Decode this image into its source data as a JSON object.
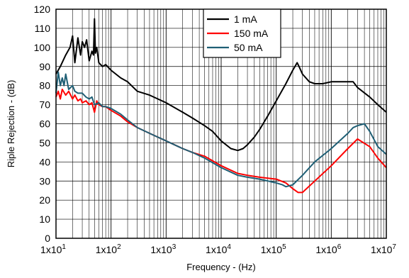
{
  "chart_data": {
    "type": "line",
    "title": "",
    "xlabel": "Frequency -  (Hz)",
    "ylabel": "Riple Rejection - (dB)",
    "x_scale": "log",
    "xlim": [
      10,
      10000000
    ],
    "ylim": [
      0,
      120
    ],
    "grid": true,
    "legend_position": "top-center",
    "y_ticks": [
      "0",
      "10",
      "20",
      "30",
      "40",
      "50",
      "60",
      "70",
      "80",
      "90",
      "100",
      "110",
      "120"
    ],
    "x_ticks": [
      {
        "base": "1x10",
        "exp": "1"
      },
      {
        "base": "1x10",
        "exp": "2"
      },
      {
        "base": "1x10",
        "exp": "3"
      },
      {
        "base": "1x10",
        "exp": "4"
      },
      {
        "base": "1x10",
        "exp": "5"
      },
      {
        "base": "1x10",
        "exp": "6"
      },
      {
        "base": "1x10",
        "exp": "7"
      }
    ],
    "series": [
      {
        "name": "1 mA",
        "color": "#000000",
        "x": [
          10,
          12,
          15,
          18,
          20,
          22,
          25,
          28,
          30,
          33,
          36,
          40,
          45,
          48,
          50,
          52,
          55,
          60,
          70,
          80,
          100,
          150,
          200,
          300,
          500,
          1000,
          2000,
          3000,
          5000,
          7000,
          10000,
          15000,
          20000,
          25000,
          30000,
          40000,
          50000,
          70000,
          100000,
          150000,
          200000,
          240000,
          260000,
          300000,
          400000,
          500000,
          700000,
          1000000,
          1500000,
          2000000,
          2500000,
          3000000,
          5000000,
          7000000,
          10000000
        ],
        "y": [
          86,
          90,
          96,
          100,
          106,
          92,
          105,
          96,
          103,
          100,
          104,
          93,
          98,
          96,
          115,
          97,
          100,
          92,
          90,
          91,
          88,
          84,
          82,
          77,
          75,
          71,
          66,
          63,
          59,
          56,
          51,
          47,
          46,
          47,
          49,
          53,
          57,
          64,
          72,
          81,
          88,
          92,
          90,
          86,
          82,
          81,
          81,
          82,
          82,
          82,
          82,
          79,
          74,
          70,
          66
        ]
      },
      {
        "name": "150 mA",
        "color": "#ff0000",
        "x": [
          10,
          11,
          12,
          13,
          15,
          17,
          20,
          22,
          25,
          28,
          30,
          35,
          40,
          45,
          50,
          55,
          60,
          70,
          80,
          100,
          150,
          200,
          300,
          500,
          1000,
          2000,
          3000,
          5000,
          10000,
          20000,
          30000,
          50000,
          100000,
          150000,
          200000,
          250000,
          300000,
          500000,
          1000000,
          2000000,
          3000000,
          5000000,
          7000000,
          10000000
        ],
        "y": [
          74,
          77,
          73,
          78,
          75,
          77,
          73,
          75,
          72,
          73,
          71,
          72,
          70,
          71,
          66,
          72,
          70,
          69,
          69,
          67,
          64,
          61,
          58,
          55,
          51,
          47,
          45,
          43,
          38,
          34,
          33,
          32,
          31,
          29,
          26,
          24,
          24,
          30,
          38,
          47,
          52,
          48,
          42,
          37
        ]
      },
      {
        "name": "50 mA",
        "color": "#1f5f75",
        "x": [
          10,
          11,
          12,
          13,
          14,
          15,
          17,
          20,
          22,
          25,
          30,
          35,
          40,
          45,
          50,
          60,
          70,
          80,
          100,
          150,
          200,
          300,
          500,
          1000,
          2000,
          3000,
          5000,
          10000,
          20000,
          30000,
          50000,
          100000,
          130000,
          150000,
          200000,
          300000,
          500000,
          1000000,
          2000000,
          2500000,
          3000000,
          4000000,
          5000000,
          7000000,
          10000000
        ],
        "y": [
          76,
          87,
          80,
          84,
          80,
          86,
          78,
          80,
          77,
          76,
          76,
          74,
          73,
          74,
          70,
          71,
          69,
          69,
          68,
          65,
          62,
          58,
          55,
          51,
          47,
          45,
          42,
          37,
          33,
          32,
          31,
          29,
          28,
          27,
          28,
          33,
          40,
          47,
          55,
          58,
          59,
          60,
          56,
          48,
          44
        ]
      }
    ]
  }
}
